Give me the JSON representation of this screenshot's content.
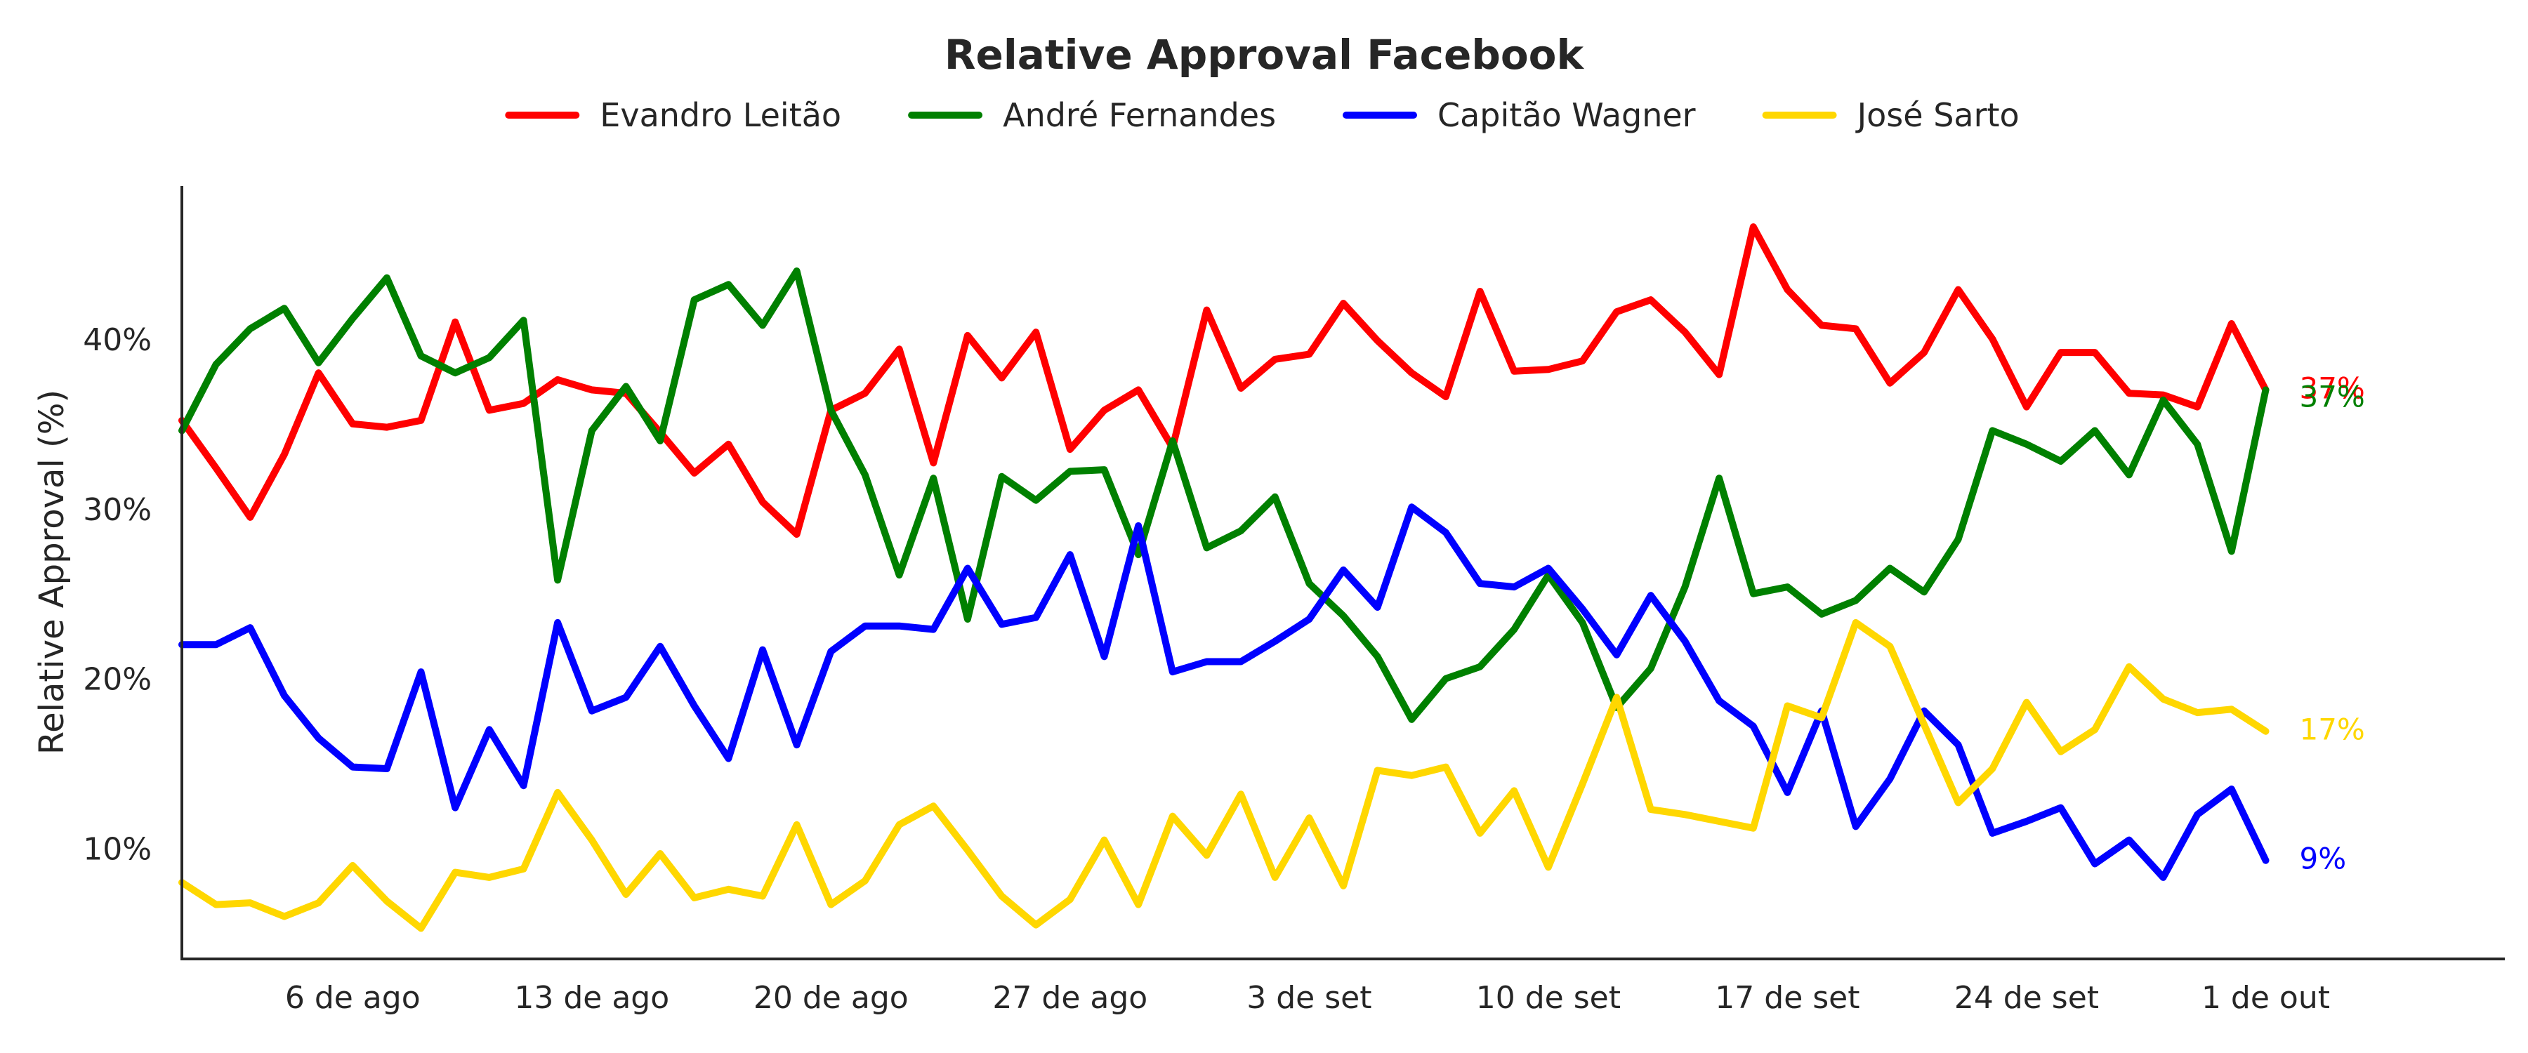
{
  "chart_data": {
    "type": "line",
    "title": "Relative Approval Facebook",
    "ylabel": "Relative Approval (%)",
    "xlabel": "",
    "ylim": [
      3.5,
      49
    ],
    "x": [
      "2022-08-01",
      "2022-08-02",
      "2022-08-03",
      "2022-08-04",
      "2022-08-05",
      "2022-08-06",
      "2022-08-07",
      "2022-08-08",
      "2022-08-09",
      "2022-08-10",
      "2022-08-11",
      "2022-08-12",
      "2022-08-13",
      "2022-08-14",
      "2022-08-15",
      "2022-08-16",
      "2022-08-17",
      "2022-08-18",
      "2022-08-19",
      "2022-08-20",
      "2022-08-21",
      "2022-08-22",
      "2022-08-23",
      "2022-08-24",
      "2022-08-25",
      "2022-08-26",
      "2022-08-27",
      "2022-08-28",
      "2022-08-29",
      "2022-08-30",
      "2022-08-31",
      "2022-09-01",
      "2022-09-02",
      "2022-09-03",
      "2022-09-04",
      "2022-09-05",
      "2022-09-06",
      "2022-09-07",
      "2022-09-08",
      "2022-09-09",
      "2022-09-10",
      "2022-09-11",
      "2022-09-12",
      "2022-09-13",
      "2022-09-14",
      "2022-09-15",
      "2022-09-16",
      "2022-09-17",
      "2022-09-18",
      "2022-09-19",
      "2022-09-20",
      "2022-09-21",
      "2022-09-22",
      "2022-09-23",
      "2022-09-24",
      "2022-09-25",
      "2022-09-26",
      "2022-09-27",
      "2022-09-28",
      "2022-09-29",
      "2022-09-30",
      "2022-10-01"
    ],
    "xlim": [
      "2022-08-01",
      "2022-10-08"
    ],
    "x_ticks": [
      {
        "date": "2022-08-06",
        "label": "6 de ago"
      },
      {
        "date": "2022-08-13",
        "label": "13 de ago"
      },
      {
        "date": "2022-08-20",
        "label": "20 de ago"
      },
      {
        "date": "2022-08-27",
        "label": "27 de ago"
      },
      {
        "date": "2022-09-03",
        "label": "3 de set"
      },
      {
        "date": "2022-09-10",
        "label": "10 de set"
      },
      {
        "date": "2022-09-17",
        "label": "17 de set"
      },
      {
        "date": "2022-09-24",
        "label": "24 de set"
      },
      {
        "date": "2022-10-01",
        "label": "1 de out"
      }
    ],
    "y_ticks": [
      {
        "value": 10,
        "label": "10%"
      },
      {
        "value": 20,
        "label": "20%"
      },
      {
        "value": 30,
        "label": "30%"
      },
      {
        "value": 40,
        "label": "40%"
      }
    ],
    "grid": false,
    "legend": "top-center",
    "series": [
      {
        "name": "Evandro Leitão",
        "color": "#ff0000",
        "end_label": "37%",
        "values": [
          35.2,
          32.4,
          29.5,
          33.2,
          38.0,
          35.0,
          34.8,
          35.2,
          41.0,
          35.8,
          36.2,
          37.6,
          37.0,
          36.8,
          34.5,
          32.1,
          33.8,
          30.4,
          28.5,
          35.8,
          36.8,
          39.4,
          32.7,
          40.2,
          37.7,
          40.4,
          33.5,
          35.8,
          37.0,
          33.6,
          41.7,
          37.1,
          38.8,
          39.1,
          42.1,
          39.9,
          38.0,
          36.6,
          42.8,
          38.1,
          38.2,
          38.7,
          41.6,
          42.3,
          40.4,
          37.9,
          46.6,
          42.9,
          40.8,
          40.6,
          37.4,
          39.2,
          42.9,
          40.0,
          36.0,
          39.2,
          39.2,
          36.8,
          36.7,
          36.0,
          40.9,
          37.0
        ]
      },
      {
        "name": "André Fernandes",
        "color": "#008000",
        "end_label": "37%",
        "values": [
          34.6,
          38.5,
          40.6,
          41.8,
          38.6,
          41.2,
          43.6,
          39.0,
          38.0,
          38.9,
          41.1,
          25.8,
          34.6,
          37.2,
          34.0,
          42.3,
          43.2,
          40.8,
          44.0,
          35.8,
          32.0,
          26.1,
          31.8,
          23.5,
          31.9,
          30.5,
          32.2,
          32.3,
          27.3,
          34.0,
          27.7,
          28.7,
          30.7,
          25.6,
          23.7,
          21.3,
          17.6,
          20.0,
          20.7,
          22.9,
          26.1,
          23.3,
          18.3,
          20.6,
          25.4,
          31.8,
          25.0,
          25.4,
          23.8,
          24.6,
          26.5,
          25.1,
          28.2,
          34.6,
          33.8,
          32.8,
          34.6,
          32.0,
          36.4,
          33.8,
          27.5,
          37.0
        ]
      },
      {
        "name": "Capitão Wagner",
        "color": "#0000ff",
        "end_label": "9%",
        "values": [
          22.0,
          22.0,
          23.0,
          19.0,
          16.5,
          14.8,
          14.7,
          20.4,
          12.4,
          17.0,
          13.7,
          23.3,
          18.1,
          18.9,
          21.9,
          18.4,
          15.3,
          21.7,
          16.1,
          21.6,
          23.1,
          23.1,
          22.9,
          26.5,
          23.2,
          23.6,
          27.3,
          21.3,
          29.0,
          20.4,
          21.0,
          21.0,
          22.2,
          23.5,
          26.4,
          24.2,
          30.1,
          28.6,
          25.6,
          25.4,
          26.5,
          24.1,
          21.4,
          24.9,
          22.2,
          18.7,
          17.2,
          13.3,
          18.1,
          11.3,
          14.1,
          18.1,
          16.1,
          10.9,
          11.6,
          12.4,
          9.1,
          10.5,
          8.3,
          12.0,
          13.5,
          9.3
        ]
      },
      {
        "name": "José Sarto",
        "color": "#ffd700",
        "end_label": "17%",
        "values": [
          8.0,
          6.7,
          6.8,
          6.0,
          6.8,
          9.0,
          6.9,
          5.3,
          8.6,
          8.3,
          8.8,
          13.3,
          10.5,
          7.3,
          9.7,
          7.1,
          7.6,
          7.2,
          11.4,
          6.7,
          8.1,
          11.4,
          12.5,
          9.9,
          7.2,
          5.5,
          7.0,
          10.5,
          6.7,
          11.9,
          9.6,
          13.2,
          8.3,
          11.8,
          7.8,
          14.6,
          14.3,
          14.8,
          10.9,
          13.4,
          8.9,
          13.8,
          18.9,
          12.3,
          12.0,
          11.6,
          11.2,
          18.4,
          17.7,
          23.3,
          21.9,
          17.3,
          12.7,
          14.7,
          18.6,
          15.7,
          17.0,
          20.7,
          18.8,
          18.0,
          18.2,
          16.9
        ]
      }
    ]
  }
}
